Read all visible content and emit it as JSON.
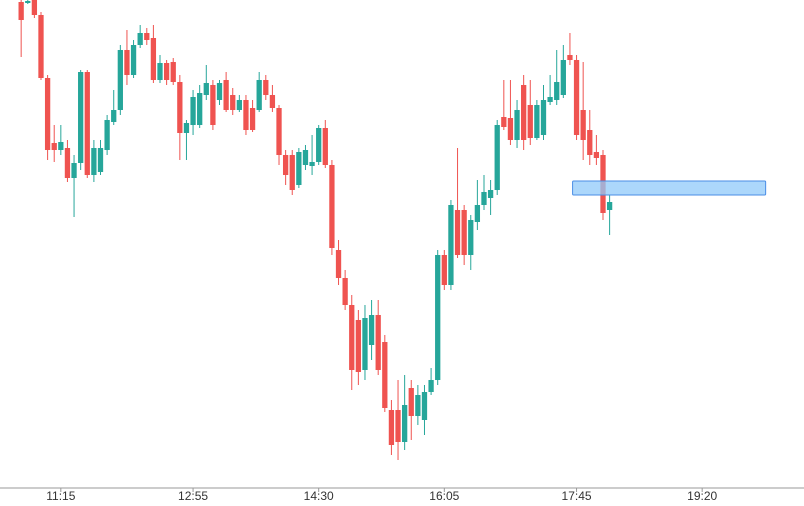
{
  "chart_data": {
    "type": "candlestick",
    "x": [
      645,
      650,
      655,
      660,
      665,
      670,
      675,
      680,
      685,
      690,
      695,
      700,
      705,
      710,
      715,
      720,
      725,
      730,
      735,
      740,
      745,
      750,
      755,
      760,
      765,
      770,
      775,
      780,
      785,
      790,
      795,
      800,
      805,
      810,
      815,
      820,
      825,
      830,
      835,
      840,
      845,
      850,
      855,
      860,
      865,
      870,
      875,
      880,
      885,
      890,
      895,
      900,
      905,
      910,
      915,
      920,
      925,
      930,
      935,
      940,
      945,
      950,
      955,
      960,
      965,
      970,
      975,
      980,
      985,
      990,
      995,
      1000,
      1005,
      1010,
      1015,
      1020,
      1025,
      1030,
      1035,
      1040,
      1045,
      1050,
      1055,
      1060,
      1065,
      1070,
      1075,
      1080,
      1085,
      1090
    ],
    "open": [
      486,
      485,
      488,
      473,
      410,
      345,
      338,
      340,
      310,
      325,
      416,
      313,
      316,
      338,
      366,
      378,
      438,
      413,
      443,
      455,
      450,
      408,
      425,
      426,
      406,
      355,
      363,
      363,
      393,
      403,
      388,
      408,
      393,
      378,
      388,
      380,
      378,
      408,
      393,
      380,
      333,
      333,
      303,
      323,
      322,
      326,
      360,
      323,
      238,
      210,
      183,
      168,
      118,
      143,
      173,
      146,
      78,
      78,
      46,
      100,
      72,
      68,
      96,
      108,
      233,
      203,
      278,
      278,
      233,
      266,
      283,
      290,
      298,
      371,
      370,
      348,
      403,
      383,
      350,
      353,
      386,
      388,
      393,
      433,
      428,
      378,
      358,
      336,
      333,
      278
    ],
    "close": [
      468,
      487,
      473,
      410,
      338,
      338,
      346,
      310,
      325,
      416,
      313,
      340,
      340,
      368,
      378,
      438,
      413,
      443,
      455,
      448,
      408,
      425,
      408,
      406,
      355,
      365,
      391,
      395,
      405,
      363,
      405,
      378,
      378,
      388,
      358,
      358,
      408,
      393,
      380,
      333,
      313,
      298,
      336,
      338,
      326,
      360,
      323,
      240,
      210,
      183,
      118,
      116,
      170,
      173,
      118,
      80,
      43,
      46,
      83,
      72,
      93,
      96,
      108,
      233,
      203,
      283,
      233,
      233,
      268,
      283,
      296,
      298,
      363,
      361,
      348,
      378,
      348,
      350,
      383,
      388,
      391,
      406,
      428,
      428,
      353,
      348,
      333,
      330,
      275,
      286
    ],
    "high": [
      488,
      488,
      488,
      476,
      413,
      363,
      363,
      348,
      333,
      418,
      418,
      348,
      348,
      373,
      398,
      443,
      458,
      448,
      463,
      460,
      463,
      433,
      428,
      430,
      413,
      368,
      398,
      403,
      423,
      408,
      408,
      416,
      400,
      393,
      393,
      388,
      416,
      413,
      403,
      383,
      338,
      338,
      340,
      343,
      353,
      363,
      368,
      328,
      248,
      218,
      193,
      178,
      183,
      188,
      188,
      153,
      88,
      108,
      113,
      108,
      103,
      103,
      120,
      238,
      238,
      288,
      340,
      283,
      273,
      308,
      313,
      308,
      368,
      408,
      408,
      388,
      413,
      408,
      388,
      403,
      413,
      438,
      443,
      455,
      433,
      426,
      378,
      353,
      338,
      293
    ],
    "low": [
      431,
      484,
      470,
      408,
      328,
      326,
      333,
      306,
      271,
      318,
      310,
      306,
      313,
      333,
      363,
      373,
      403,
      410,
      440,
      443,
      405,
      405,
      403,
      403,
      328,
      328,
      353,
      360,
      388,
      358,
      383,
      376,
      373,
      376,
      353,
      356,
      376,
      388,
      376,
      323,
      303,
      293,
      300,
      318,
      313,
      323,
      320,
      233,
      203,
      178,
      98,
      103,
      108,
      128,
      113,
      76,
      33,
      28,
      38,
      48,
      63,
      53,
      93,
      103,
      198,
      198,
      230,
      223,
      218,
      258,
      278,
      273,
      293,
      358,
      343,
      340,
      338,
      343,
      348,
      348,
      383,
      383,
      390,
      423,
      348,
      328,
      323,
      323,
      268,
      253
    ],
    "up_color": "#26a69a",
    "down_color": "#ef5350",
    "xlim": [
      629,
      1237
    ],
    "xticks": [
      {
        "value": 675,
        "label": "11:15"
      },
      {
        "value": 775,
        "label": "12:55"
      },
      {
        "value": 870,
        "label": "14:30"
      },
      {
        "value": 965,
        "label": "16:05"
      },
      {
        "value": 1065,
        "label": "17:45"
      },
      {
        "value": 1160,
        "label": "19:20"
      }
    ],
    "ylim": [
      0,
      488
    ],
    "zone": {
      "x": [
        1062,
        1208
      ],
      "y": [
        293,
        307
      ],
      "color": "#90caf9"
    }
  }
}
